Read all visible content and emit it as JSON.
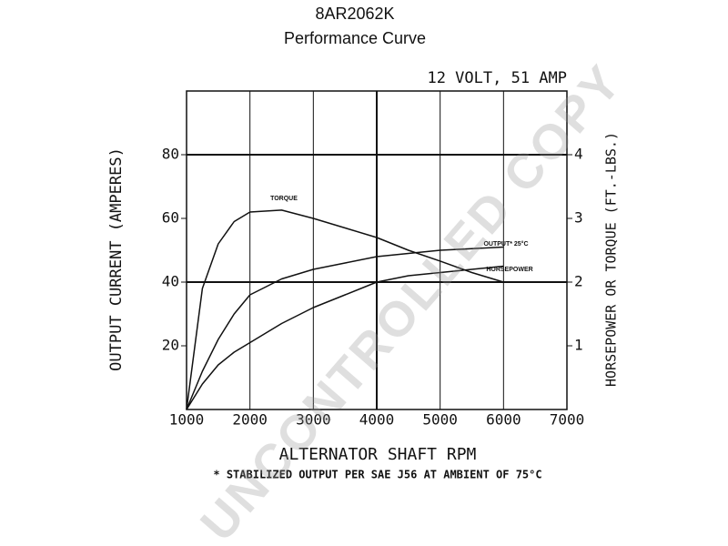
{
  "chart_data": {
    "type": "line",
    "title": "8AR2062K",
    "subtitle": "Performance Curve",
    "annotation": "12 VOLT, 51 AMP",
    "x_label": "ALTERNATOR SHAFT RPM",
    "y_label": "OUTPUT CURRENT (AMPERES)",
    "y2_label": "HORSEPOWER OR TORQUE (FT.-LBS.)",
    "footnote": "* STABILIZED OUTPUT PER SAE J56 AT AMBIENT OF 75°C",
    "watermark": "UNCONTROLLED COPY",
    "x": [
      1000,
      1250,
      1500,
      1750,
      2000,
      2500,
      3000,
      3500,
      4000,
      4500,
      5000,
      5500,
      6000
    ],
    "xlim": [
      1000,
      7000
    ],
    "xticks": [
      1000,
      2000,
      3000,
      4000,
      5000,
      6000,
      7000
    ],
    "ylim": [
      0,
      100
    ],
    "yticks": [
      20,
      40,
      60,
      80
    ],
    "y2lim": [
      0,
      5
    ],
    "y2ticks": [
      1,
      2,
      3,
      4
    ],
    "hgrid": [
      40,
      80
    ],
    "series": [
      {
        "name": "TORQUE",
        "color": "#111111",
        "axis": "y2",
        "values": [
          0,
          1.9,
          2.6,
          2.95,
          3.1,
          3.13,
          3.0,
          2.85,
          2.7,
          2.5,
          2.33,
          2.15,
          2.0
        ]
      },
      {
        "name": "OUTPUT* 25°C",
        "color": "#111111",
        "values": [
          0,
          12,
          22,
          30,
          36,
          41,
          44,
          46,
          48,
          49,
          50,
          50.5,
          51
        ]
      },
      {
        "name": "HORSEPOWER",
        "color": "#111111",
        "axis": "y2",
        "values": [
          0,
          0.4,
          0.7,
          0.9,
          1.05,
          1.35,
          1.6,
          1.8,
          2.0,
          2.1,
          2.15,
          2.2,
          2.25
        ]
      }
    ]
  }
}
